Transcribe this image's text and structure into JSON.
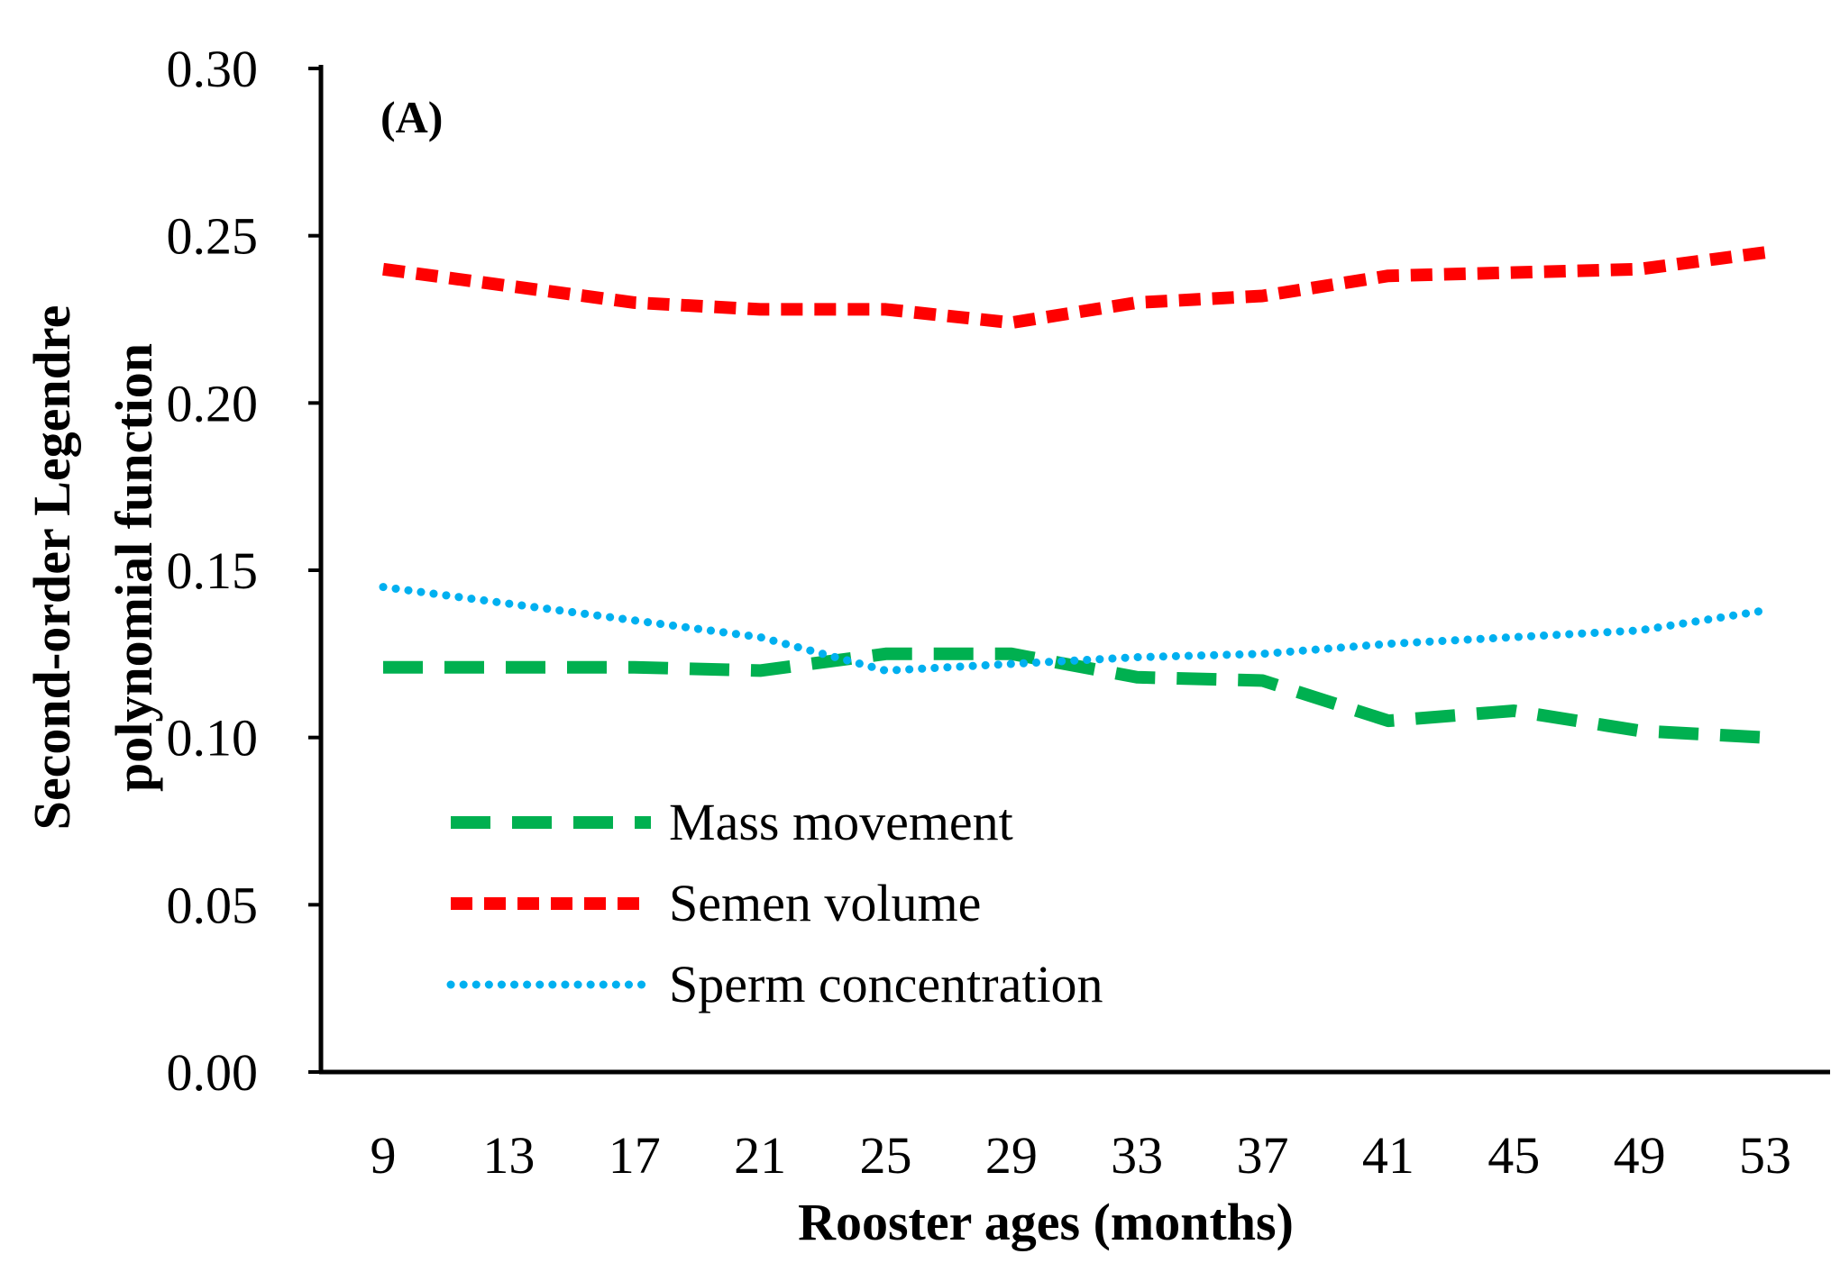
{
  "chart_data": {
    "type": "line",
    "panel_label": "(A)",
    "xlabel": "Rooster ages (months)",
    "ylabel_lines": [
      "Second-order Legendre",
      "polynomial function"
    ],
    "x": [
      9,
      13,
      17,
      21,
      25,
      29,
      33,
      37,
      41,
      45,
      49,
      53
    ],
    "x_tick_labels": [
      "9",
      "13",
      "17",
      "21",
      "25",
      "29",
      "33",
      "37",
      "41",
      "45",
      "49",
      "53"
    ],
    "ylim": [
      0.0,
      0.3
    ],
    "y_ticks": [
      0.0,
      0.05,
      0.1,
      0.15,
      0.2,
      0.25,
      0.3
    ],
    "y_tick_labels": [
      "0.00",
      "0.05",
      "0.10",
      "0.15",
      "0.20",
      "0.25",
      "0.30"
    ],
    "grid": false,
    "legend_position": "bottom-left",
    "series": [
      {
        "name": "Mass movement",
        "color": "#00b050",
        "style": "long-dash",
        "values": [
          0.121,
          0.121,
          0.121,
          0.12,
          0.125,
          0.125,
          0.118,
          0.117,
          0.105,
          0.108,
          0.102,
          0.1
        ]
      },
      {
        "name": "Semen volume",
        "color": "#ff0000",
        "style": "dash",
        "values": [
          0.24,
          0.235,
          0.23,
          0.228,
          0.228,
          0.224,
          0.23,
          0.232,
          0.238,
          0.239,
          0.24,
          0.245
        ]
      },
      {
        "name": "Sperm concentration",
        "color": "#00b0f0",
        "style": "dot",
        "values": [
          0.145,
          0.14,
          0.135,
          0.13,
          0.12,
          0.122,
          0.124,
          0.125,
          0.128,
          0.13,
          0.132,
          0.138
        ]
      }
    ]
  }
}
